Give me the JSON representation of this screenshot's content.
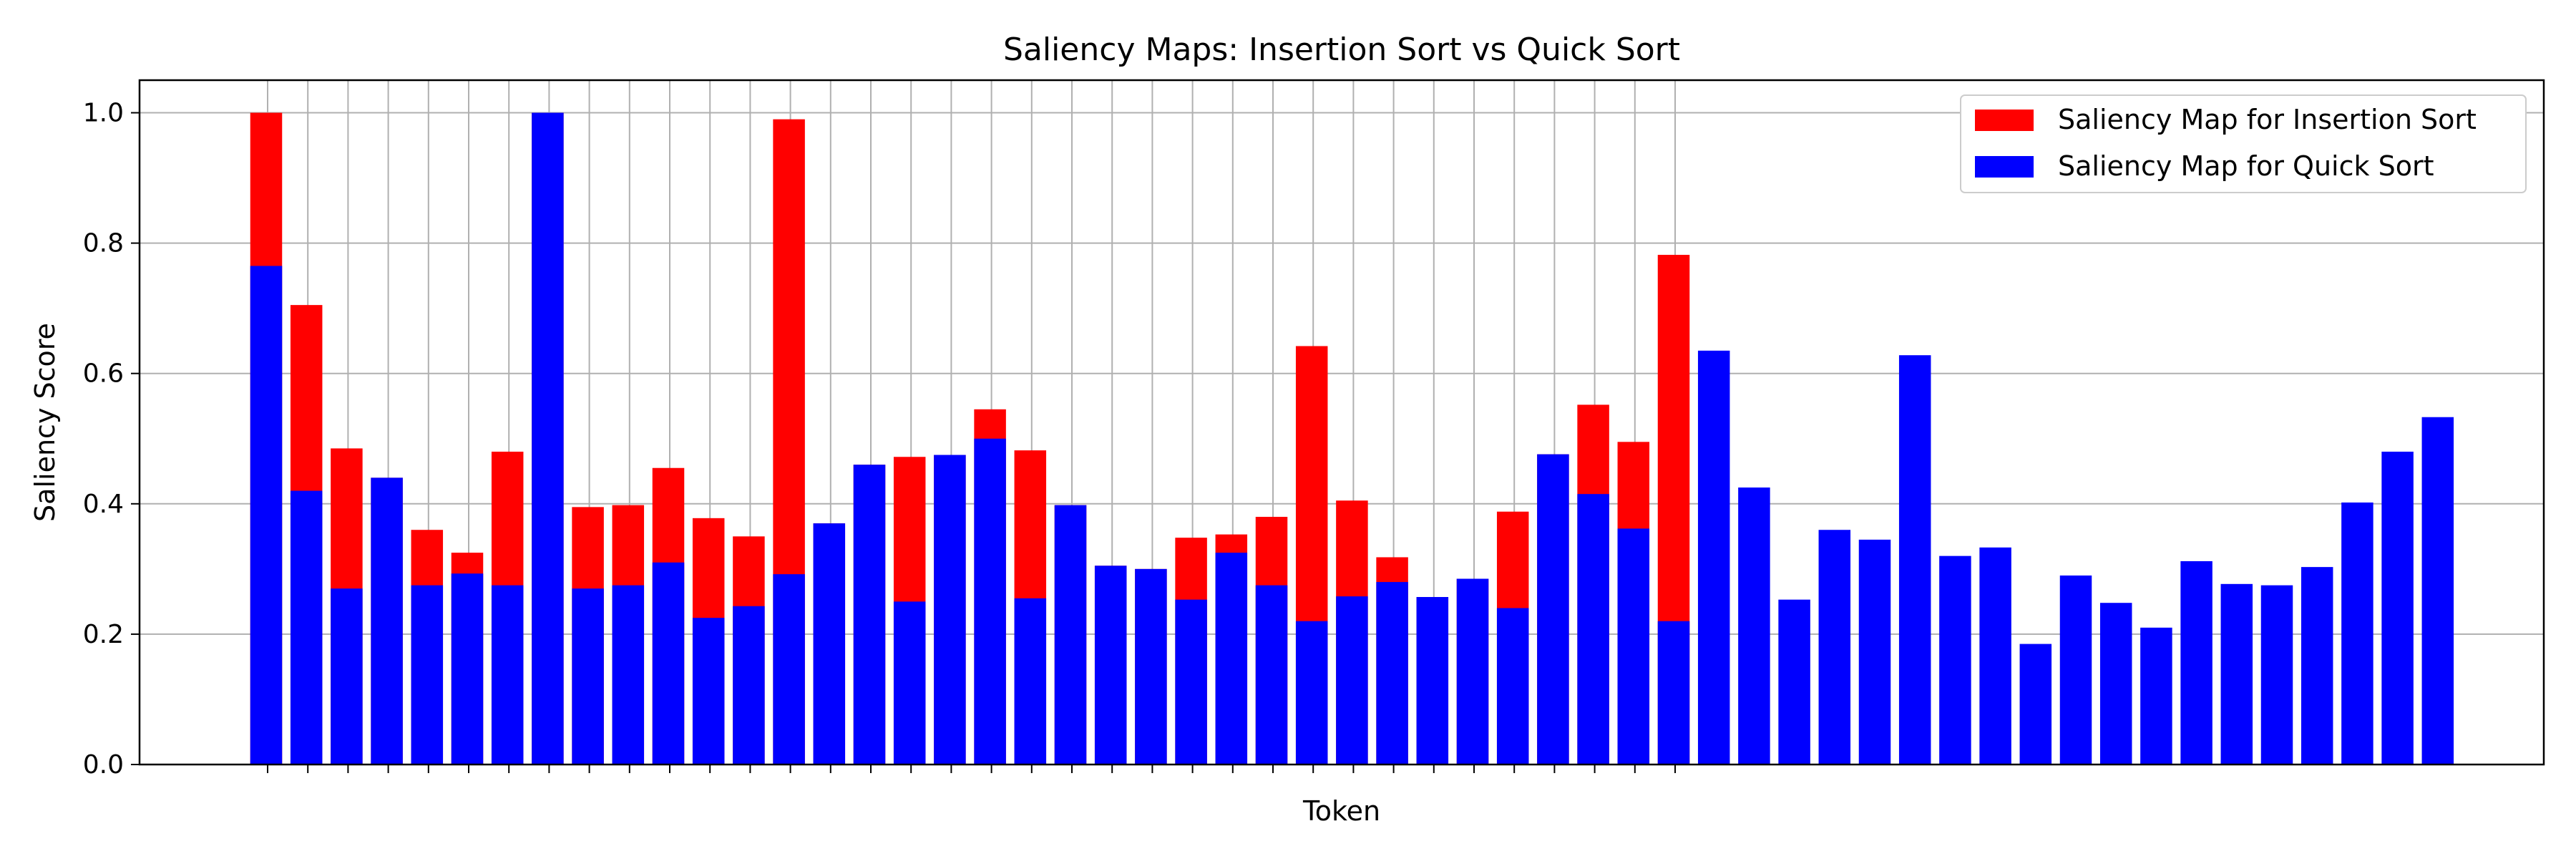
{
  "chart_data": {
    "type": "bar",
    "title": "Saliency Maps: Insertion Sort vs Quick Sort",
    "xlabel": "Token",
    "ylabel": "Saliency Score",
    "ylim": [
      0,
      1.05
    ],
    "yticks": [
      "0.0",
      "0.2",
      "0.4",
      "0.6",
      "0.8",
      "1.0"
    ],
    "grid": true,
    "legend_position": "top-right",
    "series": [
      {
        "name": "Saliency Map for Insertion Sort",
        "color": "#ff0000",
        "values": [
          1.0,
          0.705,
          0.485,
          0.44,
          0.36,
          0.325,
          0.48,
          1.0,
          0.395,
          0.398,
          0.455,
          0.378,
          0.35,
          0.99,
          0.37,
          0.46,
          0.472,
          0.475,
          0.545,
          0.482,
          0.398,
          0.305,
          0.3,
          0.348,
          0.353,
          0.38,
          0.642,
          0.405,
          0.318,
          0.257,
          0.285,
          0.388,
          0.476,
          0.552,
          0.495,
          0.782
        ]
      },
      {
        "name": "Saliency Map for Quick Sort",
        "color": "#0000ff",
        "values": [
          0.765,
          0.42,
          0.27,
          0.44,
          0.275,
          0.293,
          0.275,
          1.0,
          0.27,
          0.275,
          0.31,
          0.225,
          0.243,
          0.292,
          0.37,
          0.46,
          0.25,
          0.475,
          0.5,
          0.255,
          0.398,
          0.305,
          0.3,
          0.253,
          0.325,
          0.275,
          0.22,
          0.258,
          0.28,
          0.257,
          0.285,
          0.24,
          0.476,
          0.415,
          0.362,
          0.22,
          0.635,
          0.425,
          0.253,
          0.36,
          0.345,
          0.628,
          0.32,
          0.333,
          0.185,
          0.29,
          0.248,
          0.21,
          0.312,
          0.277,
          0.275,
          0.303,
          0.402,
          0.48,
          0.533
        ]
      }
    ]
  }
}
